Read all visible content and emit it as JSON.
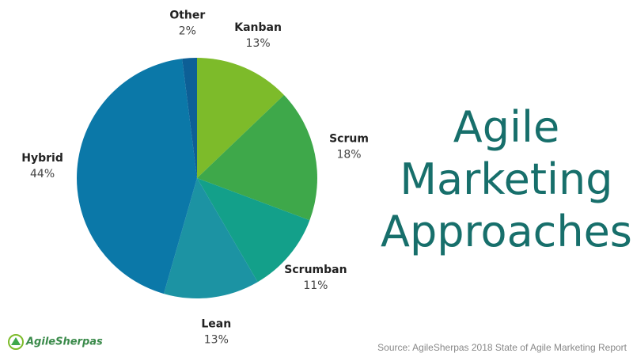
{
  "chart_data": {
    "type": "pie",
    "title": "Agile Marketing Approaches",
    "categories": [
      "Kanban",
      "Scrum",
      "Scrumban",
      "Lean",
      "Hybrid",
      "Other"
    ],
    "values": [
      13,
      18,
      11,
      13,
      44,
      2
    ],
    "value_labels": [
      "13%",
      "18%",
      "11%",
      "13%",
      "44%",
      "2%"
    ],
    "colors": [
      "#7dbb2a",
      "#3ea84a",
      "#13a08a",
      "#1c93a3",
      "#0b78a8",
      "#0d5f96"
    ],
    "source": "Source: AgileSherpas 2018 State of Agile Marketing Report",
    "logo": "AgileSherpas"
  }
}
